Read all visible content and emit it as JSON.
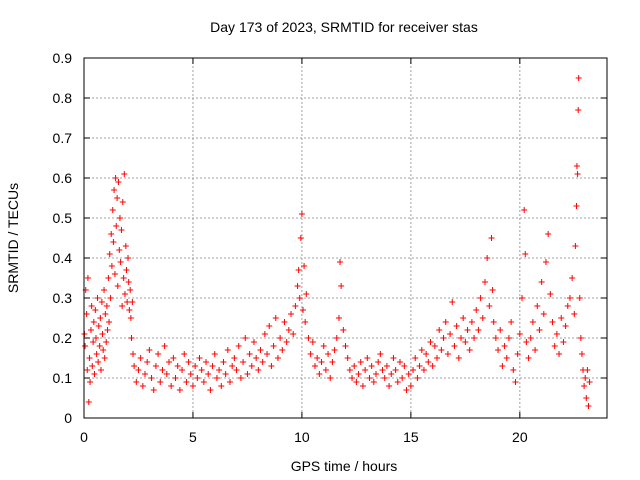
{
  "chart_data": {
    "type": "scatter",
    "title": "Day 173 of 2023, SRMTID for receiver stas",
    "xlabel": "GPS time / hours",
    "ylabel": "SRMTID / TECUs",
    "xlim": [
      0,
      24
    ],
    "ylim": [
      0,
      0.9
    ],
    "xticks": [
      0,
      5,
      10,
      15,
      20
    ],
    "xtick_labels": [
      "0",
      "5",
      "10",
      "15",
      "20"
    ],
    "yticks": [
      0,
      0.1,
      0.2,
      0.3,
      0.4,
      0.5,
      0.6,
      0.7,
      0.8,
      0.9
    ],
    "ytick_labels": [
      "0",
      "0.1",
      "0.2",
      "0.3",
      "0.4",
      "0.5",
      "0.6",
      "0.7",
      "0.8",
      "0.9"
    ],
    "grid": true,
    "marker": "+",
    "color": "#ff0000",
    "series": [
      {
        "name": "SRMTID",
        "x": [
          0.02,
          0.05,
          0.08,
          0.12,
          0.15,
          0.18,
          0.22,
          0.25,
          0.28,
          0.32,
          0.35,
          0.38,
          0.42,
          0.45,
          0.48,
          0.52,
          0.55,
          0.58,
          0.62,
          0.65,
          0.68,
          0.72,
          0.75,
          0.78,
          0.82,
          0.85,
          0.88,
          0.92,
          0.95,
          0.98,
          1.02,
          1.05,
          1.08,
          1.12,
          1.15,
          1.18,
          1.22,
          1.25,
          1.28,
          1.32,
          1.35,
          1.38,
          1.42,
          1.45,
          1.48,
          1.52,
          1.55,
          1.58,
          1.62,
          1.65,
          1.68,
          1.72,
          1.75,
          1.78,
          1.82,
          1.85,
          1.88,
          1.92,
          1.95,
          1.98,
          2.02,
          2.05,
          2.08,
          2.12,
          2.15,
          2.18,
          2.22,
          2.25,
          2.3,
          2.4,
          2.5,
          2.6,
          2.7,
          2.8,
          2.9,
          3.0,
          3.1,
          3.2,
          3.3,
          3.4,
          3.5,
          3.6,
          3.7,
          3.8,
          3.9,
          4.0,
          4.1,
          4.2,
          4.3,
          4.4,
          4.5,
          4.6,
          4.7,
          4.8,
          4.9,
          5.0,
          5.1,
          5.2,
          5.3,
          5.4,
          5.5,
          5.6,
          5.7,
          5.8,
          5.9,
          6.0,
          6.1,
          6.2,
          6.3,
          6.4,
          6.5,
          6.6,
          6.7,
          6.8,
          6.9,
          7.0,
          7.1,
          7.2,
          7.3,
          7.4,
          7.5,
          7.6,
          7.7,
          7.8,
          7.9,
          8.0,
          8.1,
          8.2,
          8.3,
          8.4,
          8.5,
          8.6,
          8.7,
          8.8,
          8.9,
          9.0,
          9.1,
          9.2,
          9.3,
          9.4,
          9.5,
          9.6,
          9.7,
          9.8,
          9.85,
          9.9,
          9.95,
          10.0,
          10.05,
          10.1,
          10.15,
          10.2,
          10.3,
          10.4,
          10.5,
          10.6,
          10.7,
          10.8,
          10.9,
          11.0,
          11.1,
          11.2,
          11.3,
          11.4,
          11.5,
          11.6,
          11.7,
          11.75,
          11.8,
          11.9,
          12.0,
          12.1,
          12.2,
          12.3,
          12.4,
          12.5,
          12.6,
          12.7,
          12.8,
          12.9,
          13.0,
          13.1,
          13.2,
          13.3,
          13.4,
          13.5,
          13.6,
          13.7,
          13.8,
          13.9,
          14.0,
          14.1,
          14.2,
          14.3,
          14.4,
          14.5,
          14.6,
          14.7,
          14.8,
          14.9,
          15.0,
          15.1,
          15.2,
          15.3,
          15.4,
          15.5,
          15.6,
          15.7,
          15.8,
          15.9,
          16.0,
          16.1,
          16.2,
          16.3,
          16.4,
          16.5,
          16.6,
          16.7,
          16.8,
          16.9,
          17.0,
          17.1,
          17.2,
          17.3,
          17.4,
          17.5,
          17.6,
          17.7,
          17.8,
          17.9,
          18.0,
          18.1,
          18.2,
          18.3,
          18.4,
          18.5,
          18.6,
          18.7,
          18.75,
          18.8,
          18.9,
          19.0,
          19.1,
          19.2,
          19.3,
          19.4,
          19.5,
          19.6,
          19.7,
          19.8,
          19.9,
          20.0,
          20.1,
          20.2,
          20.25,
          20.3,
          20.4,
          20.5,
          20.6,
          20.7,
          20.8,
          20.9,
          21.0,
          21.1,
          21.2,
          21.3,
          21.4,
          21.5,
          21.6,
          21.7,
          21.8,
          21.9,
          22.0,
          22.1,
          22.2,
          22.3,
          22.4,
          22.5,
          22.55,
          22.6,
          22.62,
          22.65,
          22.68,
          22.7,
          22.75,
          22.8,
          22.85,
          22.9,
          22.95,
          23.0,
          23.05,
          23.1,
          23.15,
          23.2
        ],
        "y": [
          0.21,
          0.18,
          0.32,
          0.26,
          0.12,
          0.35,
          0.04,
          0.15,
          0.09,
          0.22,
          0.28,
          0.13,
          0.19,
          0.24,
          0.11,
          0.27,
          0.2,
          0.16,
          0.3,
          0.14,
          0.23,
          0.18,
          0.25,
          0.12,
          0.29,
          0.21,
          0.17,
          0.32,
          0.15,
          0.26,
          0.19,
          0.28,
          0.22,
          0.35,
          0.24,
          0.41,
          0.3,
          0.46,
          0.38,
          0.52,
          0.44,
          0.57,
          0.36,
          0.6,
          0.48,
          0.55,
          0.33,
          0.59,
          0.42,
          0.5,
          0.39,
          0.47,
          0.28,
          0.54,
          0.35,
          0.61,
          0.31,
          0.43,
          0.37,
          0.29,
          0.4,
          0.34,
          0.27,
          0.32,
          0.25,
          0.2,
          0.29,
          0.16,
          0.13,
          0.09,
          0.12,
          0.15,
          0.08,
          0.11,
          0.14,
          0.17,
          0.1,
          0.07,
          0.13,
          0.16,
          0.09,
          0.12,
          0.18,
          0.11,
          0.14,
          0.08,
          0.15,
          0.1,
          0.13,
          0.07,
          0.12,
          0.16,
          0.09,
          0.14,
          0.11,
          0.08,
          0.13,
          0.1,
          0.15,
          0.12,
          0.09,
          0.14,
          0.11,
          0.07,
          0.13,
          0.16,
          0.1,
          0.12,
          0.08,
          0.14,
          0.11,
          0.17,
          0.09,
          0.13,
          0.15,
          0.12,
          0.18,
          0.1,
          0.14,
          0.2,
          0.11,
          0.16,
          0.13,
          0.19,
          0.15,
          0.12,
          0.17,
          0.14,
          0.21,
          0.16,
          0.23,
          0.13,
          0.18,
          0.25,
          0.15,
          0.2,
          0.17,
          0.24,
          0.19,
          0.22,
          0.26,
          0.21,
          0.28,
          0.33,
          0.37,
          0.3,
          0.45,
          0.51,
          0.27,
          0.38,
          0.24,
          0.31,
          0.2,
          0.16,
          0.19,
          0.13,
          0.15,
          0.11,
          0.14,
          0.18,
          0.12,
          0.16,
          0.1,
          0.14,
          0.17,
          0.2,
          0.25,
          0.39,
          0.33,
          0.22,
          0.18,
          0.15,
          0.12,
          0.1,
          0.13,
          0.09,
          0.11,
          0.14,
          0.08,
          0.12,
          0.15,
          0.1,
          0.13,
          0.09,
          0.11,
          0.14,
          0.16,
          0.12,
          0.1,
          0.13,
          0.08,
          0.11,
          0.15,
          0.12,
          0.09,
          0.14,
          0.1,
          0.13,
          0.07,
          0.11,
          0.08,
          0.12,
          0.15,
          0.1,
          0.13,
          0.17,
          0.12,
          0.16,
          0.14,
          0.19,
          0.13,
          0.18,
          0.15,
          0.22,
          0.17,
          0.2,
          0.24,
          0.16,
          0.21,
          0.29,
          0.18,
          0.23,
          0.15,
          0.2,
          0.25,
          0.19,
          0.22,
          0.17,
          0.24,
          0.2,
          0.27,
          0.22,
          0.3,
          0.25,
          0.34,
          0.4,
          0.28,
          0.45,
          0.32,
          0.24,
          0.2,
          0.17,
          0.22,
          0.13,
          0.18,
          0.15,
          0.2,
          0.24,
          0.12,
          0.09,
          0.16,
          0.21,
          0.3,
          0.52,
          0.41,
          0.19,
          0.15,
          0.2,
          0.24,
          0.17,
          0.28,
          0.22,
          0.34,
          0.26,
          0.39,
          0.46,
          0.31,
          0.24,
          0.18,
          0.21,
          0.16,
          0.25,
          0.19,
          0.23,
          0.28,
          0.3,
          0.35,
          0.26,
          0.43,
          0.53,
          0.63,
          0.61,
          0.77,
          0.85,
          0.3,
          0.2,
          0.16,
          0.12,
          0.08,
          0.1,
          0.05,
          0.12,
          0.03,
          0.09
        ]
      }
    ]
  }
}
